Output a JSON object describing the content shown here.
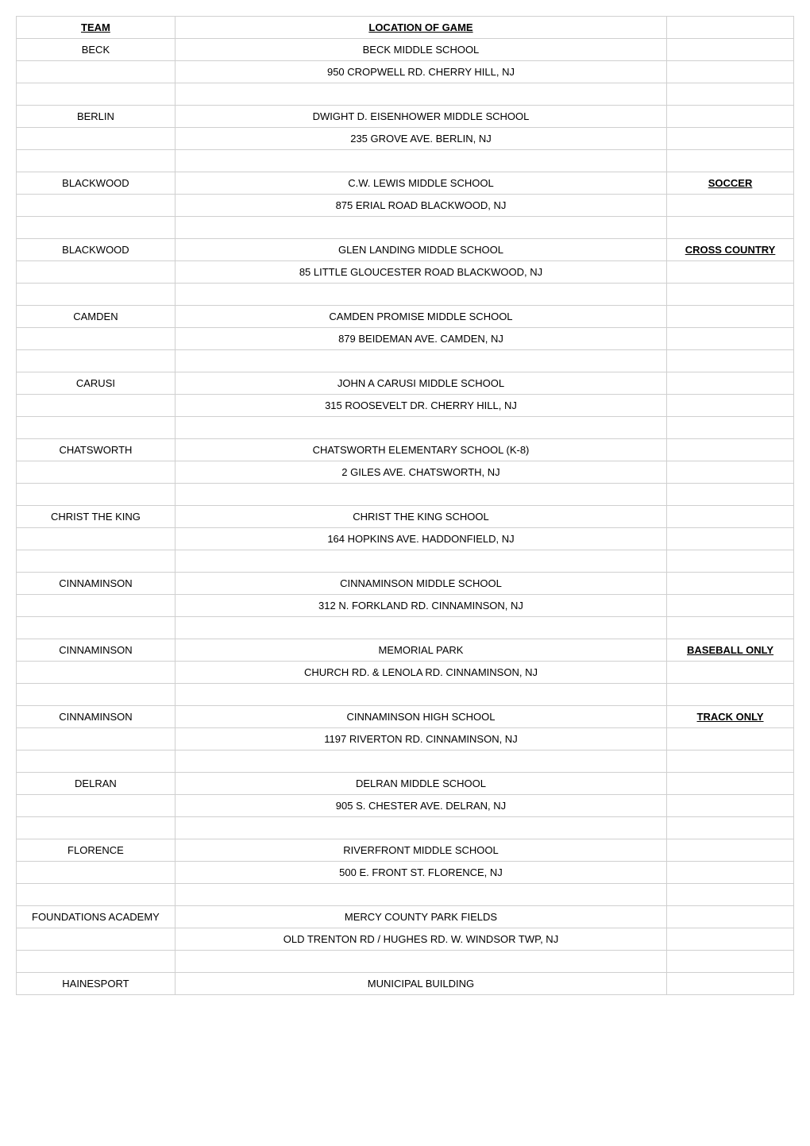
{
  "header": {
    "team": "TEAM",
    "location": "LOCATION OF GAME"
  },
  "entries": [
    {
      "team": "BECK",
      "lines": [
        "BECK MIDDLE SCHOOL",
        "950 CROPWELL RD.   CHERRY HILL, NJ"
      ],
      "note": ""
    },
    {
      "team": "BERLIN",
      "lines": [
        "DWIGHT D. EISENHOWER MIDDLE SCHOOL",
        "235 GROVE AVE.  BERLIN, NJ"
      ],
      "note": ""
    },
    {
      "team": "BLACKWOOD",
      "lines": [
        "C.W.  LEWIS MIDDLE SCHOOL",
        "875 ERIAL ROAD   BLACKWOOD, NJ"
      ],
      "note": "SOCCER"
    },
    {
      "team": "BLACKWOOD",
      "lines": [
        "GLEN LANDING MIDDLE SCHOOL",
        "85 LITTLE GLOUCESTER ROAD   BLACKWOOD, NJ"
      ],
      "note": "CROSS COUNTRY"
    },
    {
      "team": "CAMDEN",
      "lines": [
        "CAMDEN PROMISE MIDDLE SCHOOL",
        "879 BEIDEMAN AVE.  CAMDEN, NJ"
      ],
      "note": ""
    },
    {
      "team": "CARUSI",
      "lines": [
        "JOHN A CARUSI MIDDLE SCHOOL",
        "315 ROOSEVELT DR.   CHERRY HILL, NJ"
      ],
      "note": ""
    },
    {
      "team": "CHATSWORTH",
      "lines": [
        "CHATSWORTH ELEMENTARY SCHOOL (K-8)",
        "2 GILES AVE.  CHATSWORTH, NJ"
      ],
      "note": ""
    },
    {
      "team": "CHRIST THE KING",
      "lines": [
        "CHRIST THE KING SCHOOL",
        "164 HOPKINS AVE.  HADDONFIELD, NJ"
      ],
      "note": ""
    },
    {
      "team": "CINNAMINSON",
      "lines": [
        "CINNAMINSON MIDDLE SCHOOL",
        "312 N. FORKLAND RD.  CINNAMINSON, NJ"
      ],
      "note": ""
    },
    {
      "team": "CINNAMINSON",
      "lines": [
        "MEMORIAL PARK",
        "CHURCH RD. & LENOLA RD.   CINNAMINSON, NJ"
      ],
      "note": "BASEBALL ONLY"
    },
    {
      "team": "CINNAMINSON",
      "lines": [
        "CINNAMINSON HIGH SCHOOL",
        "1197 RIVERTON RD.   CINNAMINSON, NJ"
      ],
      "note": "TRACK ONLY"
    },
    {
      "team": "DELRAN",
      "lines": [
        "DELRAN MIDDLE SCHOOL",
        "905 S. CHESTER AVE.   DELRAN, NJ"
      ],
      "note": ""
    },
    {
      "team": "FLORENCE",
      "lines": [
        "RIVERFRONT MIDDLE SCHOOL",
        "500 E. FRONT ST.  FLORENCE, NJ"
      ],
      "note": ""
    },
    {
      "team": "FOUNDATIONS ACADEMY",
      "lines": [
        "MERCY COUNTY PARK FIELDS",
        "OLD TRENTON RD / HUGHES RD.  W. WINDSOR TWP, NJ"
      ],
      "note": ""
    },
    {
      "team": "HAINESPORT",
      "lines": [
        "MUNICIPAL BUILDING"
      ],
      "note": "",
      "no_blank_after": true
    }
  ]
}
